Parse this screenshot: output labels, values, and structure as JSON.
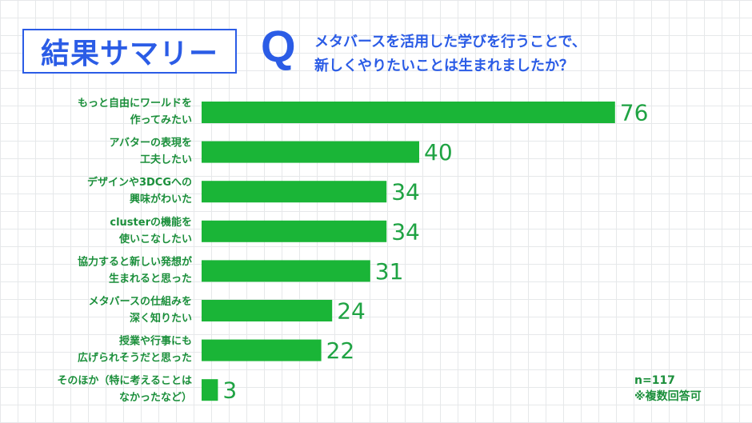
{
  "header": {
    "title": "結果サマリー",
    "q_letter": "Q",
    "question_line1": "メタバースを活用した学びを行うことで、",
    "question_line2": "新しくやりたいことは生まれましたか？"
  },
  "notes": {
    "sample": "n=117",
    "multiple": "※複数回答可"
  },
  "colors": {
    "accent": "#2b5ce6",
    "bar": "#1ab537",
    "label_text": "#1b8f3b",
    "value_text": "#1fa343"
  },
  "chart_data": {
    "type": "bar",
    "orientation": "horizontal",
    "categories": [
      [
        "もっと自由にワールドを",
        "作ってみたい"
      ],
      [
        "アバターの表現を",
        "工夫したい"
      ],
      [
        "デザインや3DCGへの",
        "興味がわいた"
      ],
      [
        "clusterの機能を",
        "使いこなしたい"
      ],
      [
        "協力すると新しい発想が",
        "生まれると思った"
      ],
      [
        "メタバースの仕組みを",
        "深く知りたい"
      ],
      [
        "授業や行事にも",
        "広げられそうだと思った"
      ],
      [
        "そのほか（特に考えることは",
        "なかったなど）"
      ]
    ],
    "values": [
      76,
      40,
      34,
      34,
      31,
      24,
      22,
      3
    ],
    "grid": true
  }
}
